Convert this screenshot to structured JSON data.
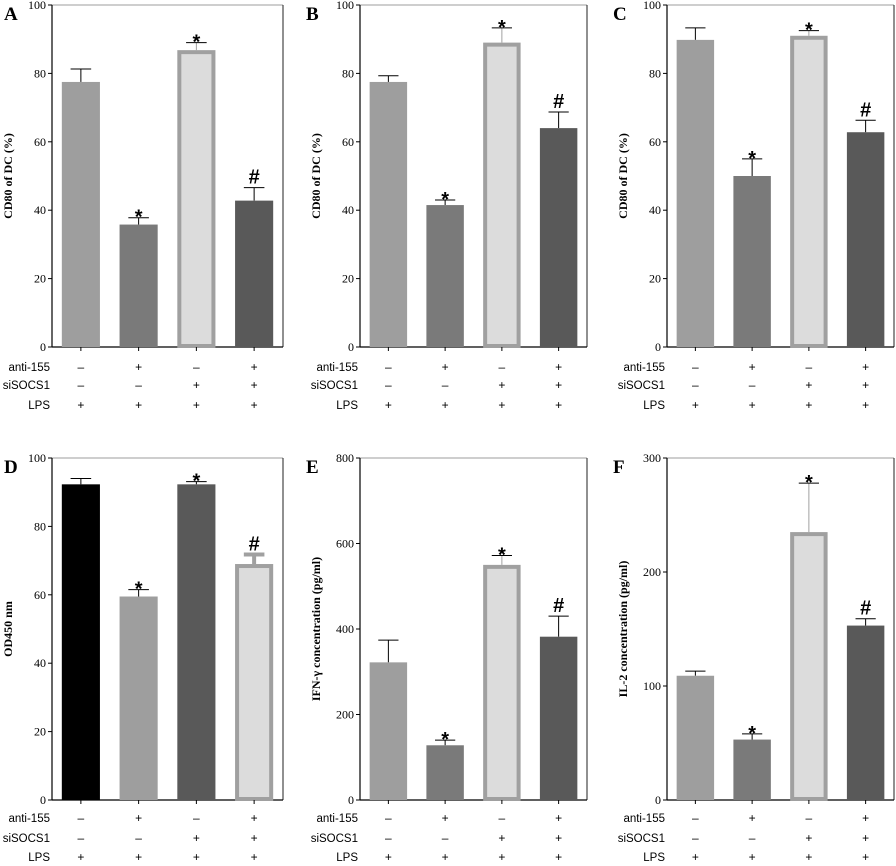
{
  "figure": {
    "row_labels": [
      "anti-155",
      "siSOCS1",
      "LPS"
    ],
    "conditions": [
      [
        "–",
        "+",
        "–",
        "+"
      ],
      [
        "–",
        "–",
        "+",
        "+"
      ],
      [
        "+",
        "+",
        "+",
        "+"
      ]
    ]
  },
  "colors": {
    "light_gray": "#9e9e9e",
    "mid_gray": "#7a7a7a",
    "pale_fill": "#dcdcdc",
    "pale_outline": "#a0a0a0",
    "dark_gray": "#595959",
    "black": "#000000"
  },
  "chart_data": [
    {
      "panel": "A",
      "type": "bar",
      "title": "",
      "xlabel": "",
      "ylabel": "CD80 of DC (%)",
      "ylim": [
        0,
        100
      ],
      "yticks": [
        0,
        20,
        40,
        60,
        80,
        100
      ],
      "categories": [
        "anti-155 – / siSOCS1 – / LPS +",
        "anti-155 + / siSOCS1 – / LPS +",
        "anti-155 – / siSOCS1 + / LPS +",
        "anti-155 + / siSOCS1 + / LPS +"
      ],
      "values": [
        77.5,
        35.8,
        86.8,
        42.8
      ],
      "errors": [
        3.8,
        2.0,
        2.2,
        3.8
      ],
      "markers": [
        "",
        "*",
        "*",
        "#"
      ],
      "styles": [
        "light",
        "mid",
        "pale",
        "dark"
      ]
    },
    {
      "panel": "B",
      "type": "bar",
      "title": "",
      "xlabel": "",
      "ylabel": "CD80 of DC (%)",
      "ylim": [
        0,
        100
      ],
      "yticks": [
        0,
        20,
        40,
        60,
        80,
        100
      ],
      "categories": [
        "anti-155 – / siSOCS1 – / LPS +",
        "anti-155 + / siSOCS1 – / LPS +",
        "anti-155 – / siSOCS1 + / LPS +",
        "anti-155 + / siSOCS1 + / LPS +"
      ],
      "values": [
        77.5,
        41.5,
        89.0,
        64.0
      ],
      "errors": [
        1.8,
        1.5,
        4.3,
        4.7
      ],
      "markers": [
        "",
        "*",
        "*",
        "#"
      ],
      "styles": [
        "light",
        "mid",
        "pale",
        "dark"
      ]
    },
    {
      "panel": "C",
      "type": "bar",
      "title": "",
      "xlabel": "",
      "ylabel": "CD80 of DC (%)",
      "ylim": [
        0,
        100
      ],
      "yticks": [
        0,
        20,
        40,
        60,
        80,
        100
      ],
      "categories": [
        "anti-155 – / siSOCS1 – / LPS +",
        "anti-155 + / siSOCS1 – / LPS +",
        "anti-155 – / siSOCS1 + / LPS +",
        "anti-155 + / siSOCS1 + / LPS +"
      ],
      "values": [
        89.8,
        50.0,
        91.0,
        62.8
      ],
      "errors": [
        3.5,
        5.0,
        1.5,
        3.5
      ],
      "markers": [
        "",
        "*",
        "*",
        "#"
      ],
      "styles": [
        "light",
        "mid",
        "pale",
        "dark"
      ]
    },
    {
      "panel": "D",
      "type": "bar",
      "title": "",
      "xlabel": "",
      "ylabel": "OD450 nm",
      "ylim": [
        0,
        100
      ],
      "yticks": [
        0,
        20,
        40,
        60,
        80,
        100
      ],
      "categories": [
        "anti-155 – / siSOCS1 – / LPS +",
        "anti-155 + / siSOCS1 – / LPS +",
        "anti-155 – / siSOCS1 + / LPS +",
        "anti-155 + / siSOCS1 + / LPS +"
      ],
      "values": [
        92.3,
        59.5,
        92.3,
        69.0
      ],
      "errors": [
        1.7,
        2.0,
        0.8,
        2.8
      ],
      "markers": [
        "",
        "*",
        "*",
        "#"
      ],
      "styles": [
        "black",
        "light",
        "dark",
        "pale"
      ]
    },
    {
      "panel": "E",
      "type": "bar",
      "title": "",
      "xlabel": "",
      "ylabel": "IFN-γ concentration (pg/ml)",
      "ylim": [
        0,
        800
      ],
      "yticks": [
        0,
        200,
        400,
        600,
        800
      ],
      "categories": [
        "anti-155 – / siSOCS1 – / LPS +",
        "anti-155 + / siSOCS1 – / LPS +",
        "anti-155 – / siSOCS1 + / LPS +",
        "anti-155 + / siSOCS1 + / LPS +"
      ],
      "values": [
        322,
        128,
        550,
        382
      ],
      "errors": [
        52,
        12,
        22,
        48
      ],
      "markers": [
        "",
        "*",
        "*",
        "#"
      ],
      "styles": [
        "light",
        "mid",
        "pale",
        "dark"
      ]
    },
    {
      "panel": "F",
      "type": "bar",
      "title": "",
      "xlabel": "",
      "ylabel": "IL-2 concentration (pg/ml)",
      "ylim": [
        0,
        300
      ],
      "yticks": [
        0,
        100,
        200,
        300
      ],
      "categories": [
        "anti-155 – / siSOCS1 – / LPS +",
        "anti-155 + / siSOCS1 – / LPS +",
        "anti-155 – / siSOCS1 + / LPS +",
        "anti-155 + / siSOCS1 + / LPS +"
      ],
      "values": [
        109,
        53,
        235,
        153
      ],
      "errors": [
        4,
        5,
        43,
        6
      ],
      "markers": [
        "",
        "*",
        "*",
        "#"
      ],
      "styles": [
        "light",
        "mid",
        "pale",
        "dark"
      ]
    }
  ]
}
